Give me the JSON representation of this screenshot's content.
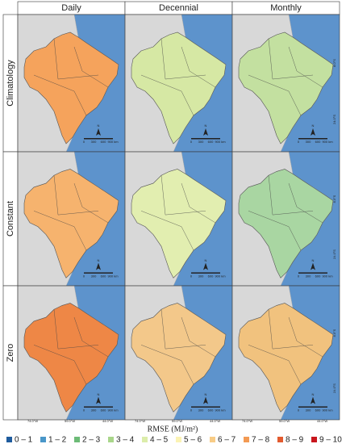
{
  "columns": [
    "Daily",
    "Decennial",
    "Monthly"
  ],
  "rows": [
    "Climatology",
    "Constant",
    "Zero"
  ],
  "panel_colors": [
    [
      "#f5a35c",
      "#d6e8a4",
      "#c3e0a0"
    ],
    [
      "#f6b36e",
      "#e2eeb0",
      "#a9d6a2"
    ],
    [
      "#ee8746",
      "#f3c88a",
      "#f1c27e"
    ]
  ],
  "scale_labels": [
    "N",
    "0",
    "300",
    "600",
    "900 km"
  ],
  "longitude_labels": [
    "74.0°W",
    "59.0°W",
    "44.0°W"
  ],
  "latitude_labels": [
    "8.0°S",
    "24.0°S"
  ],
  "legend": {
    "title": "RMSE (MJ/m²)",
    "items": [
      {
        "label": "0 – 1",
        "color": "#1f5c9e"
      },
      {
        "label": "1 – 2",
        "color": "#4a97c9"
      },
      {
        "label": "2 – 3",
        "color": "#6dbb77"
      },
      {
        "label": "3 – 4",
        "color": "#a9d68a"
      },
      {
        "label": "4 – 5",
        "color": "#dcedaa"
      },
      {
        "label": "5 – 6",
        "color": "#fbf3b4"
      },
      {
        "label": "6 – 7",
        "color": "#f8cc86"
      },
      {
        "label": "7 – 8",
        "color": "#f39a53"
      },
      {
        "label": "8 – 9",
        "color": "#e35b2f"
      },
      {
        "label": "9 – 10",
        "color": "#c8161d"
      }
    ]
  }
}
